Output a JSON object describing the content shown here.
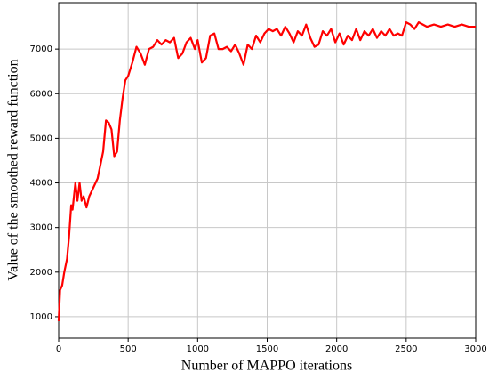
{
  "chart_data": {
    "type": "line",
    "x_label": "Number of MAPPO iterations",
    "y_label": "Value of the smoothed reward function",
    "x": [
      0,
      10,
      25,
      40,
      60,
      75,
      90,
      100,
      120,
      135,
      150,
      165,
      180,
      200,
      220,
      250,
      280,
      300,
      320,
      340,
      360,
      380,
      400,
      420,
      440,
      460,
      480,
      500,
      530,
      560,
      590,
      620,
      650,
      680,
      710,
      740,
      770,
      800,
      830,
      860,
      890,
      920,
      950,
      980,
      1000,
      1030,
      1060,
      1090,
      1120,
      1150,
      1180,
      1210,
      1240,
      1270,
      1300,
      1330,
      1360,
      1390,
      1420,
      1450,
      1480,
      1510,
      1540,
      1570,
      1600,
      1630,
      1660,
      1690,
      1720,
      1750,
      1780,
      1810,
      1840,
      1870,
      1900,
      1930,
      1960,
      1990,
      2020,
      2050,
      2080,
      2110,
      2140,
      2170,
      2200,
      2230,
      2260,
      2290,
      2320,
      2350,
      2380,
      2410,
      2440,
      2470,
      2500,
      2530,
      2560,
      2590,
      2620,
      2650,
      2700,
      2750,
      2800,
      2850,
      2900,
      2950,
      3000
    ],
    "series": [
      {
        "name": "reward",
        "color": "#ff0000",
        "values": [
          900,
          1600,
          1700,
          2000,
          2300,
          2800,
          3500,
          3400,
          4000,
          3600,
          4000,
          3600,
          3700,
          3450,
          3700,
          3900,
          4100,
          4400,
          4700,
          5400,
          5350,
          5200,
          4600,
          4700,
          5400,
          5900,
          6300,
          6400,
          6700,
          7050,
          6900,
          6650,
          7000,
          7050,
          7200,
          7100,
          7200,
          7150,
          7250,
          6800,
          6900,
          7150,
          7250,
          7000,
          7200,
          6700,
          6800,
          7300,
          7350,
          7000,
          7000,
          7050,
          6950,
          7100,
          6900,
          6650,
          7100,
          7000,
          7300,
          7150,
          7350,
          7450,
          7400,
          7450,
          7300,
          7500,
          7350,
          7150,
          7400,
          7300,
          7550,
          7250,
          7050,
          7100,
          7400,
          7300,
          7450,
          7150,
          7350,
          7100,
          7300,
          7200,
          7450,
          7200,
          7400,
          7300,
          7450,
          7250,
          7400,
          7300,
          7450,
          7300,
          7350,
          7300,
          7600,
          7550,
          7450,
          7600,
          7550,
          7500,
          7550,
          7500,
          7550,
          7500,
          7550,
          7500,
          7500
        ]
      }
    ],
    "xlim": [
      0,
      3000
    ],
    "xticks": [
      0,
      500,
      1000,
      1500,
      2000,
      2500,
      3000
    ],
    "ylim": [
      520,
      8040
    ],
    "yticks": [
      1000,
      2000,
      3000,
      4000,
      5000,
      6000,
      7000
    ],
    "grid": true
  }
}
